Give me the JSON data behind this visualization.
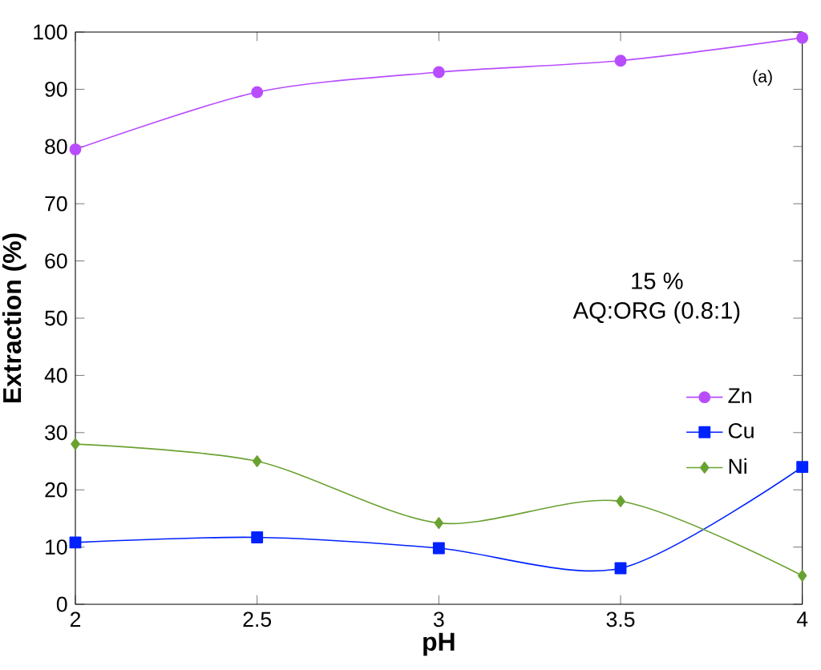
{
  "chart_data": {
    "type": "line",
    "xlabel": "pH",
    "ylabel": "Extraction (%)",
    "x": [
      2,
      2.5,
      3,
      3.5,
      4
    ],
    "series": [
      {
        "name": "Zn",
        "color": "#b84dff",
        "marker": "circle",
        "values": [
          79.5,
          89.5,
          93,
          95,
          99
        ]
      },
      {
        "name": "Cu",
        "color": "#0022ff",
        "marker": "square",
        "values": [
          10.8,
          11.7,
          9.8,
          6.3,
          24
        ]
      },
      {
        "name": "Ni",
        "color": "#6aa232",
        "marker": "diamond",
        "values": [
          28,
          25,
          14.2,
          18,
          5
        ]
      }
    ],
    "xlim": [
      2,
      4
    ],
    "xticks": [
      2,
      2.5,
      3,
      3.5,
      4
    ],
    "ylim": [
      0,
      100
    ],
    "yticks": [
      0,
      10,
      20,
      30,
      40,
      50,
      60,
      70,
      80,
      90,
      100
    ],
    "grid": false,
    "legend": "right",
    "annotations": [
      "(a)",
      "15 %",
      "AQ:ORG (0.8:1)"
    ]
  }
}
